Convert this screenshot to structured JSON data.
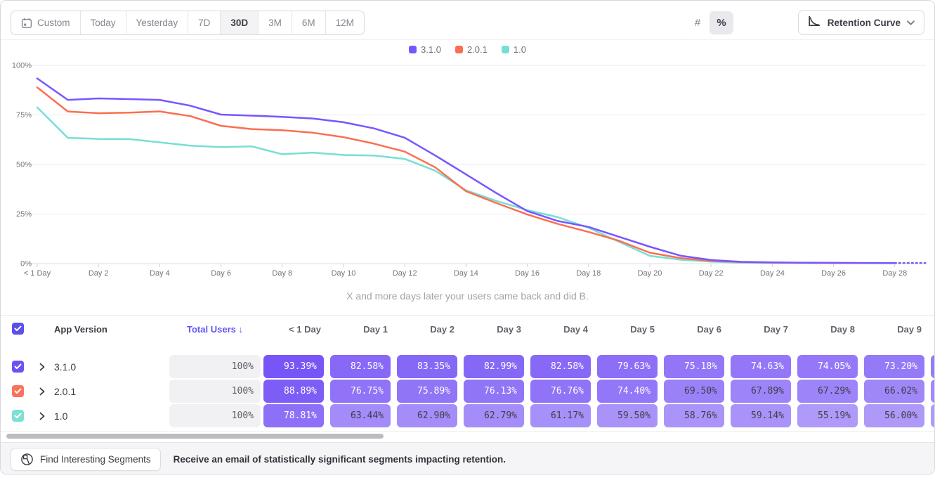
{
  "toolbar": {
    "ranges": [
      "Custom",
      "Today",
      "Yesterday",
      "7D",
      "30D",
      "3M",
      "6M",
      "12M"
    ],
    "selected_range": "30D",
    "format_toggle": {
      "options": [
        "#",
        "%"
      ],
      "selected": "%"
    },
    "view_selector": {
      "label": "Retention Curve"
    }
  },
  "colors": {
    "accent_purple": "#6156F5",
    "series_purple": "#7856FF",
    "series_orange": "#FC6E51",
    "series_teal": "#76DFD3",
    "cell_base_rgb": "110,73,245",
    "cell_text_dark": "#3f3f49",
    "cell_text_light": "#ffffff"
  },
  "chart_data": {
    "type": "line",
    "title": "",
    "caption": "X and more days later your users came back and did B.",
    "y_axis": {
      "tick_labels": [
        "0%",
        "25%",
        "50%",
        "75%",
        "100%"
      ],
      "range": [
        0,
        100
      ],
      "grid": true
    },
    "x_axis": {
      "tick_labels": [
        "< 1 Day",
        "Day 2",
        "Day 4",
        "Day 6",
        "Day 8",
        "Day 10",
        "Day 12",
        "Day 14",
        "Day 16",
        "Day 18",
        "Day 20",
        "Day 22",
        "Day 24",
        "Day 26",
        "Day 28"
      ],
      "tick_days": [
        0,
        2,
        4,
        6,
        8,
        10,
        12,
        14,
        16,
        18,
        20,
        22,
        24,
        26,
        28
      ]
    },
    "legend_position": "top-center",
    "dotted_tail": true,
    "series": [
      {
        "name": "1.0",
        "color": "#76DFD3",
        "values": [
          78.81,
          63.44,
          62.9,
          62.79,
          61.17,
          59.5,
          58.76,
          59.14,
          55.19,
          56.0,
          54.8,
          54.5,
          52.8,
          46.8,
          37.0,
          31.6,
          27.0,
          23.4,
          18.1,
          11.0,
          3.9,
          2.0,
          1.0,
          0.5,
          0.4,
          0.35,
          0.3,
          0.28,
          0.22
        ]
      },
      {
        "name": "2.0.1",
        "color": "#FC6E51",
        "values": [
          88.89,
          76.75,
          75.89,
          76.13,
          76.76,
          74.4,
          69.5,
          67.89,
          67.29,
          66.02,
          63.8,
          60.5,
          56.5,
          48.5,
          36.5,
          30.5,
          24.8,
          20.0,
          16.0,
          11.5,
          5.5,
          2.8,
          1.4,
          0.8,
          0.5,
          0.4,
          0.33,
          0.28,
          0.25
        ]
      },
      {
        "name": "3.1.0",
        "color": "#7856FF",
        "values": [
          93.39,
          82.58,
          83.35,
          82.99,
          82.58,
          79.63,
          75.18,
          74.63,
          74.05,
          73.2,
          71.3,
          68.2,
          63.5,
          54.5,
          45.0,
          35.5,
          26.5,
          21.5,
          18.5,
          13.5,
          8.5,
          4.0,
          1.8,
          0.9,
          0.6,
          0.45,
          0.38,
          0.32,
          0.3
        ]
      }
    ],
    "legend_order": [
      "3.1.0",
      "2.0.1",
      "1.0"
    ]
  },
  "table": {
    "header": {
      "app_version": "App Version",
      "total_users": "Total Users",
      "sort_arrow": "↓"
    },
    "columns": [
      "< 1 Day",
      "Day 1",
      "Day 2",
      "Day 3",
      "Day 4",
      "Day 5",
      "Day 6",
      "Day 7",
      "Day 8",
      "Day 9"
    ],
    "rows": [
      {
        "version": "3.1.0",
        "checkbox_color": "#6C52F4",
        "total": "100%",
        "values": [
          "93.39%",
          "82.58%",
          "83.35%",
          "82.99%",
          "82.58%",
          "79.63%",
          "75.18%",
          "74.63%",
          "74.05%",
          "73.20%"
        ]
      },
      {
        "version": "2.0.1",
        "checkbox_color": "#F9735B",
        "total": "100%",
        "values": [
          "88.89%",
          "76.75%",
          "75.89%",
          "76.13%",
          "76.76%",
          "74.40%",
          "69.50%",
          "67.89%",
          "67.29%",
          "66.02%"
        ]
      },
      {
        "version": "1.0",
        "checkbox_color": "#7EE0D2",
        "total": "100%",
        "values": [
          "78.81%",
          "63.44%",
          "62.90%",
          "62.79%",
          "61.17%",
          "59.50%",
          "58.76%",
          "59.14%",
          "55.19%",
          "56.00%"
        ]
      }
    ]
  },
  "bottom_bar": {
    "button_label": "Find Interesting Segments",
    "message": "Receive an email of statistically significant segments impacting retention."
  }
}
